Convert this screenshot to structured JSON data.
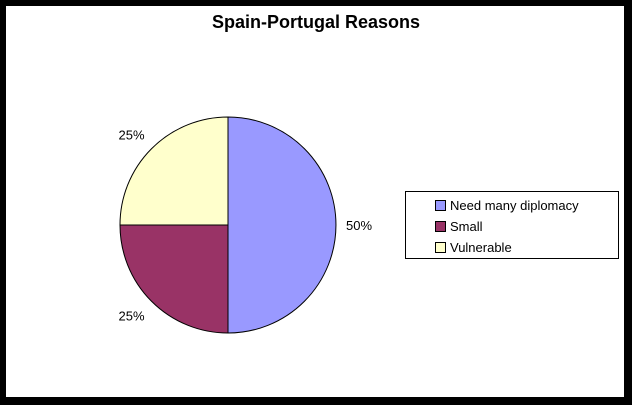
{
  "chart_data": {
    "type": "pie",
    "title": "Spain-Portugal Reasons",
    "categories": [
      "Need many diplomacy",
      "Small",
      "Vulnerable"
    ],
    "values": [
      50,
      25,
      25
    ],
    "labels": [
      "50%",
      "25%",
      "25%"
    ],
    "colors": [
      "#9999ff",
      "#993366",
      "#ffffcc"
    ],
    "legend_position": "right"
  }
}
